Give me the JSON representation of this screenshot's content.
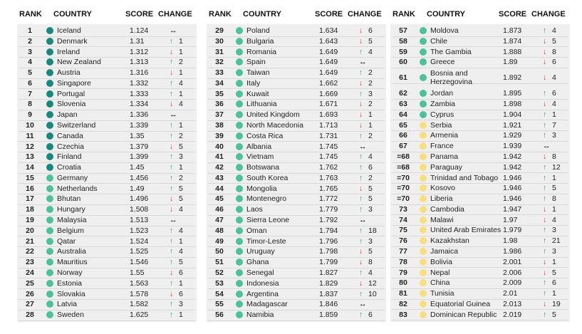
{
  "headers": [
    "RANK",
    "COUNTRY",
    "SCORE",
    "CHANGE"
  ],
  "columns": [
    [
      {
        "rank": "1",
        "country": "Iceland",
        "score": 1.124,
        "arrow": "↔",
        "color": "#17897a"
      },
      {
        "rank": "2",
        "country": "Denmark",
        "score": 1.31,
        "arrow": "↑",
        "change": "1",
        "color": "#17897a"
      },
      {
        "rank": "3",
        "country": "Ireland",
        "score": 1.312,
        "arrow": "↓",
        "change": "1",
        "color": "#17897a"
      },
      {
        "rank": "4",
        "country": "New Zealand",
        "score": 1.313,
        "arrow": "↑",
        "change": "2",
        "color": "#17897a"
      },
      {
        "rank": "5",
        "country": "Austria",
        "score": 1.316,
        "arrow": "↓",
        "change": "1",
        "color": "#17897a"
      },
      {
        "rank": "6",
        "country": "Singapore",
        "score": 1.332,
        "arrow": "↑",
        "change": "4",
        "color": "#17897a"
      },
      {
        "rank": "7",
        "country": "Portugal",
        "score": 1.333,
        "arrow": "↑",
        "change": "1",
        "color": "#17897a"
      },
      {
        "rank": "8",
        "country": "Slovenia",
        "score": 1.334,
        "arrow": "↓",
        "change": "4",
        "color": "#17897a"
      },
      {
        "rank": "9",
        "country": "Japan",
        "score": 1.336,
        "arrow": "↔",
        "color": "#17897a"
      },
      {
        "rank": "10",
        "country": "Switzerland",
        "score": 1.339,
        "arrow": "↑",
        "change": "1",
        "color": "#17897a"
      },
      {
        "rank": "11",
        "country": "Canada",
        "score": 1.35,
        "arrow": "↑",
        "change": "2",
        "color": "#17897a"
      },
      {
        "rank": "12",
        "country": "Czechia",
        "score": 1.379,
        "arrow": "↓",
        "change": "5",
        "color": "#17897a"
      },
      {
        "rank": "13",
        "country": "Finland",
        "score": 1.399,
        "arrow": "↑",
        "change": "3",
        "color": "#17897a"
      },
      {
        "rank": "14",
        "country": "Croatia",
        "score": 1.45,
        "arrow": "↑",
        "change": "1",
        "color": "#17897a"
      },
      {
        "rank": "15",
        "country": "Germany",
        "score": 1.456,
        "arrow": "↑",
        "change": "2",
        "color": "#4cc29c"
      },
      {
        "rank": "16",
        "country": "Netherlands",
        "score": 1.49,
        "arrow": "↑",
        "change": "5",
        "color": "#4cc29c"
      },
      {
        "rank": "17",
        "country": "Bhutan",
        "score": 1.496,
        "arrow": "↓",
        "change": "5",
        "color": "#4cc29c"
      },
      {
        "rank": "18",
        "country": "Hungary",
        "score": 1.508,
        "arrow": "↓",
        "change": "4",
        "color": "#4cc29c"
      },
      {
        "rank": "19",
        "country": "Malaysia",
        "score": 1.513,
        "arrow": "↔",
        "color": "#4cc29c"
      },
      {
        "rank": "20",
        "country": "Belgium",
        "score": 1.523,
        "arrow": "↑",
        "change": "4",
        "color": "#4cc29c"
      },
      {
        "rank": "21",
        "country": "Qatar",
        "score": 1.524,
        "arrow": "↑",
        "change": "1",
        "color": "#4cc29c"
      },
      {
        "rank": "22",
        "country": "Australia",
        "score": 1.525,
        "arrow": "↑",
        "change": "4",
        "color": "#4cc29c"
      },
      {
        "rank": "23",
        "country": "Mauritius",
        "score": 1.546,
        "arrow": "↑",
        "change": "5",
        "color": "#4cc29c"
      },
      {
        "rank": "24",
        "country": "Norway",
        "score": 1.55,
        "arrow": "↓",
        "change": "6",
        "color": "#4cc29c"
      },
      {
        "rank": "25",
        "country": "Estonia",
        "score": 1.563,
        "arrow": "↑",
        "change": "1",
        "color": "#4cc29c"
      },
      {
        "rank": "26",
        "country": "Slovakia",
        "score": 1.578,
        "arrow": "↓",
        "change": "6",
        "color": "#4cc29c"
      },
      {
        "rank": "27",
        "country": "Latvia",
        "score": 1.582,
        "arrow": "↑",
        "change": "3",
        "color": "#4cc29c"
      },
      {
        "rank": "28",
        "country": "Sweden",
        "score": 1.625,
        "arrow": "↑",
        "change": "1",
        "color": "#4cc29c"
      }
    ],
    [
      {
        "rank": "29",
        "country": "Poland",
        "score": 1.634,
        "arrow": "↓",
        "change": "6",
        "color": "#4cc29c"
      },
      {
        "rank": "30",
        "country": "Bulgaria",
        "score": 1.643,
        "arrow": "↓",
        "change": "5",
        "color": "#4cc29c"
      },
      {
        "rank": "31",
        "country": "Romania",
        "score": 1.649,
        "arrow": "↑",
        "change": "4",
        "color": "#4cc29c"
      },
      {
        "rank": "32",
        "country": "Spain",
        "score": 1.649,
        "arrow": "↔",
        "color": "#4cc29c"
      },
      {
        "rank": "33",
        "country": "Taiwan",
        "score": 1.649,
        "arrow": "↑",
        "change": "2",
        "color": "#4cc29c"
      },
      {
        "rank": "34",
        "country": "Italy",
        "score": 1.662,
        "arrow": "↓",
        "change": "2",
        "color": "#4cc29c"
      },
      {
        "rank": "35",
        "country": "Kuwait",
        "score": 1.669,
        "arrow": "↑",
        "change": "3",
        "color": "#4cc29c"
      },
      {
        "rank": "36",
        "country": "Lithuania",
        "score": 1.671,
        "arrow": "↓",
        "change": "2",
        "color": "#4cc29c"
      },
      {
        "rank": "37",
        "country": "United Kingdom",
        "score": 1.693,
        "arrow": "↓",
        "change": "1",
        "color": "#4cc29c"
      },
      {
        "rank": "38",
        "country": "North Macedonia",
        "score": 1.713,
        "arrow": "↓",
        "change": "1",
        "color": "#4cc29c"
      },
      {
        "rank": "39",
        "country": "Costa Rica",
        "score": 1.731,
        "arrow": "↑",
        "change": "2",
        "color": "#4cc29c"
      },
      {
        "rank": "40",
        "country": "Albania",
        "score": 1.745,
        "arrow": "↔",
        "color": "#4cc29c"
      },
      {
        "rank": "41",
        "country": "Vietnam",
        "score": 1.745,
        "arrow": "↑",
        "change": "4",
        "color": "#4cc29c"
      },
      {
        "rank": "42",
        "country": "Botswana",
        "score": 1.762,
        "arrow": "↑",
        "change": "6",
        "color": "#4cc29c"
      },
      {
        "rank": "43",
        "country": "South Korea",
        "score": 1.763,
        "arrow": "↑",
        "change": "2",
        "color": "#4cc29c"
      },
      {
        "rank": "44",
        "country": "Mongolia",
        "score": 1.765,
        "arrow": "↓",
        "change": "5",
        "color": "#4cc29c"
      },
      {
        "rank": "45",
        "country": "Montenegro",
        "score": 1.772,
        "arrow": "↑",
        "change": "5",
        "color": "#4cc29c"
      },
      {
        "rank": "46",
        "country": "Laos",
        "score": 1.779,
        "arrow": "↑",
        "change": "3",
        "color": "#4cc29c"
      },
      {
        "rank": "47",
        "country": "Sierra Leone",
        "score": 1.792,
        "arrow": "↔",
        "color": "#4cc29c"
      },
      {
        "rank": "48",
        "country": "Oman",
        "score": 1.794,
        "arrow": "↑",
        "change": "18",
        "color": "#4cc29c"
      },
      {
        "rank": "49",
        "country": "Timor-Leste",
        "score": 1.796,
        "arrow": "↑",
        "change": "3",
        "color": "#4cc29c"
      },
      {
        "rank": "50",
        "country": "Uruguay",
        "score": 1.798,
        "arrow": "↓",
        "change": "5",
        "color": "#4cc29c"
      },
      {
        "rank": "51",
        "country": "Ghana",
        "score": 1.799,
        "arrow": "↓",
        "change": "8",
        "color": "#4cc29c"
      },
      {
        "rank": "52",
        "country": "Senegal",
        "score": 1.827,
        "arrow": "↑",
        "change": "4",
        "color": "#4cc29c"
      },
      {
        "rank": "53",
        "country": "Indonesia",
        "score": 1.829,
        "arrow": "↓",
        "change": "12",
        "color": "#4cc29c"
      },
      {
        "rank": "54",
        "country": "Argentina",
        "score": 1.837,
        "arrow": "↑",
        "change": "10",
        "color": "#4cc29c"
      },
      {
        "rank": "55",
        "country": "Madagascar",
        "score": 1.846,
        "arrow": "↔",
        "color": "#4cc29c"
      },
      {
        "rank": "56",
        "country": "Namibia",
        "score": 1.859,
        "arrow": "↑",
        "change": "6",
        "color": "#4cc29c"
      }
    ],
    [
      {
        "rank": "57",
        "country": "Moldova",
        "score": 1.873,
        "arrow": "↑",
        "change": "4",
        "color": "#4cc29c"
      },
      {
        "rank": "58",
        "country": "Chile",
        "score": 1.874,
        "arrow": "↓",
        "change": "5",
        "color": "#4cc29c"
      },
      {
        "rank": "59",
        "country": "The Gambia",
        "score": 1.888,
        "arrow": "↓",
        "change": "8",
        "color": "#4cc29c"
      },
      {
        "rank": "60",
        "country": "Greece",
        "score": 1.89,
        "arrow": "↓",
        "change": "6",
        "color": "#4cc29c"
      },
      {
        "rank": "61",
        "country": "Bosnia and Herzegovina",
        "score": 1.892,
        "arrow": "↓",
        "change": "4",
        "color": "#4cc29c"
      },
      {
        "rank": "62",
        "country": "Jordan",
        "score": 1.895,
        "arrow": "↑",
        "change": "6",
        "color": "#4cc29c"
      },
      {
        "rank": "63",
        "country": "Zambia",
        "score": 1.898,
        "arrow": "↓",
        "change": "4",
        "color": "#4cc29c"
      },
      {
        "rank": "64",
        "country": "Cyprus",
        "score": 1.904,
        "arrow": "↑",
        "change": "1",
        "color": "#4cc29c"
      },
      {
        "rank": "65",
        "country": "Serbia",
        "score": 1.921,
        "arrow": "↑",
        "change": "7",
        "color": "#f7df7e"
      },
      {
        "rank": "66",
        "country": "Armenia",
        "score": 1.929,
        "arrow": "↑",
        "change": "3",
        "color": "#f7df7e"
      },
      {
        "rank": "67",
        "country": "France",
        "score": 1.939,
        "arrow": "↔",
        "color": "#f7df7e"
      },
      {
        "rank": "=68",
        "country": "Panama",
        "score": 1.942,
        "arrow": "↓",
        "change": "8",
        "color": "#f7df7e"
      },
      {
        "rank": "=68",
        "country": "Paraguay",
        "score": 1.942,
        "arrow": "↑",
        "change": "12",
        "color": "#f7df7e"
      },
      {
        "rank": "=70",
        "country": "Trinidad and Tobago",
        "score": 1.946,
        "arrow": "↑",
        "change": "1",
        "color": "#f7df7e"
      },
      {
        "rank": "=70",
        "country": "Kosovo",
        "score": 1.946,
        "arrow": "↑",
        "change": "5",
        "color": "#f7df7e"
      },
      {
        "rank": "=70",
        "country": "Liberia",
        "score": 1.946,
        "arrow": "↑",
        "change": "8",
        "color": "#f7df7e"
      },
      {
        "rank": "73",
        "country": "Cambodia",
        "score": 1.947,
        "arrow": "↓",
        "change": "1",
        "color": "#f7df7e"
      },
      {
        "rank": "74",
        "country": "Malawi",
        "score": 1.97,
        "arrow": "↓",
        "change": "4",
        "color": "#f7df7e"
      },
      {
        "rank": "75",
        "country": "United Arab Emirates",
        "score": 1.979,
        "arrow": "↑",
        "change": "3",
        "color": "#f7df7e"
      },
      {
        "rank": "76",
        "country": "Kazakhstan",
        "score": 1.98,
        "arrow": "↑",
        "change": "21",
        "color": "#f7df7e"
      },
      {
        "rank": "77",
        "country": "Jamaica",
        "score": 1.986,
        "arrow": "↑",
        "change": "3",
        "color": "#f7df7e"
      },
      {
        "rank": "78",
        "country": "Bolivia",
        "score": 2.001,
        "arrow": "↓",
        "change": "1",
        "color": "#f7df7e"
      },
      {
        "rank": "79",
        "country": "Nepal",
        "score": 2.006,
        "arrow": "↓",
        "change": "5",
        "color": "#f7df7e"
      },
      {
        "rank": "80",
        "country": "China",
        "score": 2.009,
        "arrow": "↑",
        "change": "6",
        "color": "#f7df7e"
      },
      {
        "rank": "81",
        "country": "Tunisia",
        "score": 2.01,
        "arrow": "↑",
        "change": "1",
        "color": "#f7df7e"
      },
      {
        "rank": "82",
        "country": "Equatorial Guinea",
        "score": 2.013,
        "arrow": "↓",
        "change": "19",
        "color": "#f7df7e"
      },
      {
        "rank": "83",
        "country": "Dominican Republic",
        "score": 2.019,
        "arrow": "↑",
        "change": "5",
        "color": "#f7df7e"
      }
    ]
  ]
}
